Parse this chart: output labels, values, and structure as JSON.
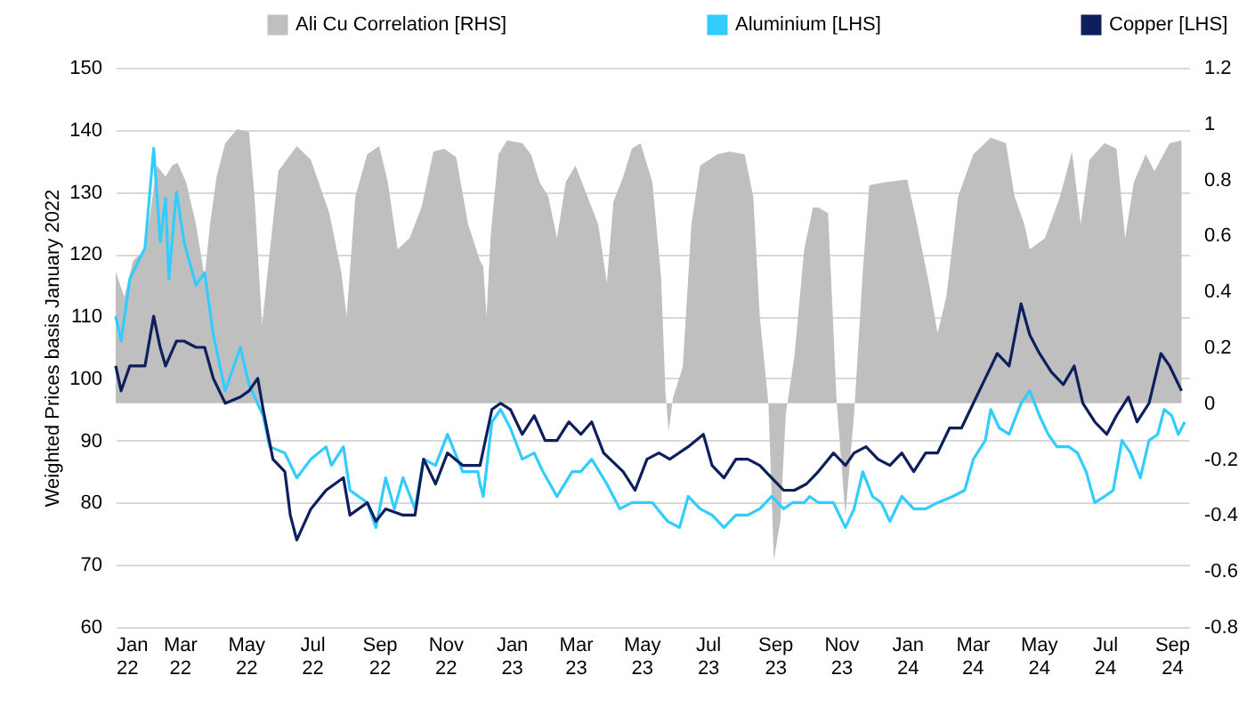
{
  "chart_data": {
    "type": "line",
    "ylabel": "Weighted Prices basis January 2022",
    "legend": "top",
    "grid": "y",
    "xlim": [
      "2022-01-01",
      "2024-09-17"
    ],
    "xticks": [
      {
        "value": "2022-01-01",
        "label": "Jan 22"
      },
      {
        "value": "2022-03-01",
        "label": "Mar 22"
      },
      {
        "value": "2022-05-01",
        "label": "May 22"
      },
      {
        "value": "2022-07-01",
        "label": "Jul 22"
      },
      {
        "value": "2022-09-01",
        "label": "Sep 22"
      },
      {
        "value": "2022-11-01",
        "label": "Nov 22"
      },
      {
        "value": "2023-01-01",
        "label": "Jan 23"
      },
      {
        "value": "2023-03-01",
        "label": "Mar 23"
      },
      {
        "value": "2023-05-01",
        "label": "May 23"
      },
      {
        "value": "2023-07-01",
        "label": "Jul 23"
      },
      {
        "value": "2023-09-01",
        "label": "Sep 23"
      },
      {
        "value": "2023-11-01",
        "label": "Nov 23"
      },
      {
        "value": "2024-01-01",
        "label": "Jan 24"
      },
      {
        "value": "2024-03-01",
        "label": "Mar 24"
      },
      {
        "value": "2024-05-01",
        "label": "May 24"
      },
      {
        "value": "2024-07-01",
        "label": "Jul 24"
      },
      {
        "value": "2024-09-01",
        "label": "Sep 24"
      }
    ],
    "ylim": [
      60,
      150
    ],
    "yticks": [
      60,
      70,
      80,
      90,
      100,
      110,
      120,
      130,
      140,
      150
    ],
    "y2lim": [
      -0.8,
      1.2
    ],
    "y2ticks": [
      -0.8,
      -0.6,
      -0.4,
      -0.2,
      0,
      0.2,
      0.4,
      0.6,
      0.8,
      1,
      1.2
    ],
    "series": [
      {
        "name": "Ali Cu Correlation [RHS]",
        "type": "area",
        "axis": "y2",
        "color": "#bfbfbf",
        "x": [
          "2022-01-01",
          "2022-01-09",
          "2022-01-17",
          "2022-01-28",
          "2022-02-08",
          "2022-02-16",
          "2022-02-22",
          "2022-02-27",
          "2022-03-07",
          "2022-03-16",
          "2022-03-24",
          "2022-03-29",
          "2022-04-04",
          "2022-04-12",
          "2022-04-23",
          "2022-05-04",
          "2022-05-09",
          "2022-05-16",
          "2022-05-20",
          "2022-05-31",
          "2022-06-17",
          "2022-06-30",
          "2022-07-17",
          "2022-07-28",
          "2022-08-02",
          "2022-08-10",
          "2022-08-21",
          "2022-09-01",
          "2022-09-09",
          "2022-09-18",
          "2022-09-29",
          "2022-10-10",
          "2022-10-21",
          "2022-10-31",
          "2022-11-11",
          "2022-11-22",
          "2022-12-03",
          "2022-12-06",
          "2022-12-09",
          "2022-12-13",
          "2022-12-20",
          "2022-12-28",
          "2023-01-11",
          "2023-01-19",
          "2023-01-27",
          "2023-02-04",
          "2023-02-12",
          "2023-02-20",
          "2023-03-01",
          "2023-03-11",
          "2023-03-22",
          "2023-03-30",
          "2023-04-05",
          "2023-04-14",
          "2023-04-22",
          "2023-04-30",
          "2023-05-11",
          "2023-05-19",
          "2023-05-23",
          "2023-05-26",
          "2023-05-30",
          "2023-06-08",
          "2023-06-16",
          "2023-06-24",
          "2023-07-10",
          "2023-07-21",
          "2023-08-04",
          "2023-08-12",
          "2023-08-18",
          "2023-08-26",
          "2023-08-31",
          "2023-09-06",
          "2023-09-11",
          "2023-09-19",
          "2023-09-28",
          "2023-10-06",
          "2023-10-11",
          "2023-10-20",
          "2023-10-28",
          "2023-11-05",
          "2023-11-13",
          "2023-11-21",
          "2023-11-27",
          "2023-12-11",
          "2024-01-01",
          "2024-01-10",
          "2024-01-21",
          "2024-01-29",
          "2024-02-06",
          "2024-02-17",
          "2024-03-02",
          "2024-03-18",
          "2024-04-01",
          "2024-04-09",
          "2024-04-18",
          "2024-04-23",
          "2024-05-07",
          "2024-05-21",
          "2024-06-01",
          "2024-06-09",
          "2024-06-17",
          "2024-07-01",
          "2024-07-12",
          "2024-07-20",
          "2024-07-28",
          "2024-08-08",
          "2024-08-16",
          "2024-08-30",
          "2024-09-10"
        ],
        "values": [
          0.47,
          0.38,
          0.51,
          0.55,
          0.85,
          0.81,
          0.85,
          0.86,
          0.79,
          0.64,
          0.45,
          0.64,
          0.81,
          0.93,
          0.98,
          0.97,
          0.74,
          0.28,
          0.43,
          0.83,
          0.92,
          0.87,
          0.68,
          0.47,
          0.31,
          0.74,
          0.89,
          0.92,
          0.79,
          0.55,
          0.59,
          0.7,
          0.9,
          0.91,
          0.88,
          0.64,
          0.51,
          0.49,
          0.31,
          0.61,
          0.89,
          0.94,
          0.93,
          0.89,
          0.79,
          0.74,
          0.59,
          0.79,
          0.85,
          0.75,
          0.64,
          0.43,
          0.72,
          0.81,
          0.91,
          0.93,
          0.79,
          0.45,
          0.04,
          -0.1,
          0.02,
          0.13,
          0.64,
          0.85,
          0.89,
          0.9,
          0.89,
          0.74,
          0.31,
          0,
          -0.56,
          -0.42,
          -0.04,
          0.17,
          0.55,
          0.7,
          0.7,
          0.68,
          0,
          -0.4,
          -0.04,
          0.47,
          0.78,
          0.79,
          0.8,
          0.64,
          0.43,
          0.25,
          0.38,
          0.74,
          0.89,
          0.95,
          0.93,
          0.74,
          0.64,
          0.55,
          0.59,
          0.74,
          0.9,
          0.64,
          0.87,
          0.93,
          0.91,
          0.59,
          0.79,
          0.89,
          0.83,
          0.93,
          0.94
        ]
      },
      {
        "name": "Aluminium [LHS]",
        "type": "line",
        "color": "#33ccff",
        "x": [
          "2022-01-01",
          "2022-01-06",
          "2022-01-14",
          "2022-01-28",
          "2022-02-05",
          "2022-02-11",
          "2022-02-16",
          "2022-02-19",
          "2022-02-26",
          "2022-03-05",
          "2022-03-16",
          "2022-03-24",
          "2022-04-01",
          "2022-04-12",
          "2022-04-26",
          "2022-05-04",
          "2022-05-17",
          "2022-05-23",
          "2022-06-06",
          "2022-06-17",
          "2022-06-30",
          "2022-07-14",
          "2022-07-19",
          "2022-07-30",
          "2022-08-05",
          "2022-08-21",
          "2022-08-29",
          "2022-09-07",
          "2022-09-15",
          "2022-09-23",
          "2022-10-04",
          "2022-10-12",
          "2022-10-23",
          "2022-11-03",
          "2022-11-17",
          "2022-12-01",
          "2022-12-03",
          "2022-12-06",
          "2022-12-14",
          "2022-12-22",
          "2022-12-31",
          "2023-01-11",
          "2023-01-22",
          "2023-01-30",
          "2023-02-12",
          "2023-02-26",
          "2023-03-06",
          "2023-03-16",
          "2023-03-30",
          "2023-04-11",
          "2023-04-22",
          "2023-04-30",
          "2023-05-11",
          "2023-05-25",
          "2023-06-05",
          "2023-06-13",
          "2023-06-24",
          "2023-07-05",
          "2023-07-16",
          "2023-07-27",
          "2023-08-07",
          "2023-08-18",
          "2023-08-29",
          "2023-09-09",
          "2023-09-17",
          "2023-09-28",
          "2023-10-03",
          "2023-10-11",
          "2023-10-25",
          "2023-11-05",
          "2023-11-13",
          "2023-11-21",
          "2023-11-30",
          "2023-12-08",
          "2023-12-16",
          "2023-12-27",
          "2024-01-07",
          "2024-01-18",
          "2024-01-29",
          "2024-02-12",
          "2024-02-23",
          "2024-03-02",
          "2024-03-13",
          "2024-03-18",
          "2024-03-26",
          "2024-04-04",
          "2024-04-15",
          "2024-04-23",
          "2024-05-02",
          "2024-05-10",
          "2024-05-18",
          "2024-05-29",
          "2024-06-06",
          "2024-06-14",
          "2024-06-22",
          "2024-07-01",
          "2024-07-09",
          "2024-07-17",
          "2024-07-25",
          "2024-08-03",
          "2024-08-11",
          "2024-08-19",
          "2024-08-25",
          "2024-09-01",
          "2024-09-07",
          "2024-09-13"
        ],
        "values": [
          110,
          106,
          116,
          121,
          137,
          122,
          129,
          116,
          130,
          122,
          115,
          117,
          107,
          98,
          105,
          99,
          94,
          89,
          88,
          84,
          87,
          89,
          86,
          89,
          82,
          80,
          76,
          84,
          79,
          84,
          79,
          87,
          86,
          91,
          85,
          85,
          83,
          81,
          93,
          95,
          92,
          87,
          88,
          85,
          81,
          85,
          85,
          87,
          83,
          79,
          80,
          80,
          80,
          77,
          76,
          81,
          79,
          78,
          76,
          78,
          78,
          79,
          81,
          79,
          80,
          80,
          81,
          80,
          80,
          76,
          79,
          85,
          81,
          80,
          77,
          81,
          79,
          79,
          80,
          81,
          82,
          87,
          90,
          95,
          92,
          91,
          96,
          98,
          94,
          91,
          89,
          89,
          88,
          85,
          80,
          81,
          82,
          90,
          88,
          84,
          90,
          91,
          95,
          94,
          91,
          93
        ]
      },
      {
        "name": "Copper [LHS]",
        "type": "line",
        "color": "#0d1f5c",
        "x": [
          "2022-01-01",
          "2022-01-06",
          "2022-01-14",
          "2022-01-28",
          "2022-02-05",
          "2022-02-11",
          "2022-02-16",
          "2022-02-26",
          "2022-03-05",
          "2022-03-16",
          "2022-03-24",
          "2022-04-01",
          "2022-04-12",
          "2022-04-26",
          "2022-05-04",
          "2022-05-12",
          "2022-05-17",
          "2022-05-26",
          "2022-06-06",
          "2022-06-11",
          "2022-06-17",
          "2022-06-30",
          "2022-07-14",
          "2022-07-30",
          "2022-08-05",
          "2022-08-21",
          "2022-08-29",
          "2022-09-07",
          "2022-09-23",
          "2022-10-04",
          "2022-10-12",
          "2022-10-23",
          "2022-11-03",
          "2022-11-17",
          "2022-12-03",
          "2022-12-14",
          "2022-12-22",
          "2022-12-31",
          "2023-01-11",
          "2023-01-22",
          "2023-02-01",
          "2023-02-12",
          "2023-02-23",
          "2023-03-06",
          "2023-03-16",
          "2023-03-27",
          "2023-04-14",
          "2023-04-25",
          "2023-05-06",
          "2023-05-17",
          "2023-05-27",
          "2023-06-13",
          "2023-06-27",
          "2023-07-05",
          "2023-07-16",
          "2023-07-27",
          "2023-08-07",
          "2023-08-18",
          "2023-08-29",
          "2023-09-09",
          "2023-09-19",
          "2023-09-30",
          "2023-10-11",
          "2023-10-25",
          "2023-11-05",
          "2023-11-13",
          "2023-11-24",
          "2023-12-05",
          "2023-12-16",
          "2023-12-27",
          "2024-01-07",
          "2024-01-18",
          "2024-01-29",
          "2024-02-09",
          "2024-02-20",
          "2024-03-02",
          "2024-03-13",
          "2024-03-24",
          "2024-04-04",
          "2024-04-15",
          "2024-04-23",
          "2024-05-02",
          "2024-05-13",
          "2024-05-24",
          "2024-06-03",
          "2024-06-11",
          "2024-06-22",
          "2024-07-03",
          "2024-07-12",
          "2024-07-23",
          "2024-07-31",
          "2024-08-11",
          "2024-08-22",
          "2024-08-30",
          "2024-09-10"
        ],
        "values": [
          102,
          98,
          102,
          102,
          110,
          105,
          102,
          106,
          106,
          105,
          105,
          100,
          96,
          97,
          98,
          100,
          95,
          87,
          85,
          78,
          74,
          79,
          82,
          84,
          78,
          80,
          77,
          79,
          78,
          78,
          87,
          83,
          88,
          86,
          86,
          95,
          96,
          95,
          91,
          94,
          90,
          90,
          93,
          91,
          93,
          88,
          85,
          82,
          87,
          88,
          87,
          89,
          91,
          86,
          84,
          87,
          87,
          86,
          84,
          82,
          82,
          83,
          85,
          88,
          86,
          88,
          89,
          87,
          86,
          88,
          85,
          88,
          88,
          92,
          92,
          96,
          100,
          104,
          102,
          112,
          107,
          104,
          101,
          99,
          102,
          96,
          93,
          91,
          94,
          97,
          93,
          96,
          104,
          102,
          98
        ]
      }
    ]
  }
}
